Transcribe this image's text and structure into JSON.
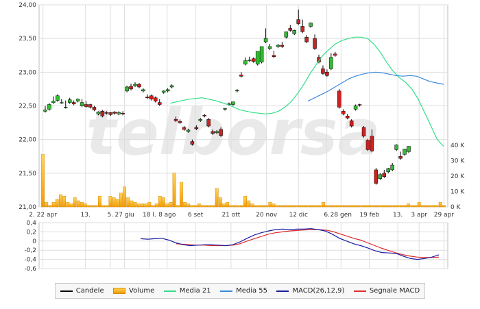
{
  "watermark": "telborsa",
  "chart_data": [
    {
      "type": "candlestick",
      "ylim": [
        21.0,
        24.0
      ],
      "y_ticks": [
        "24,00",
        "23,50",
        "23,00",
        "22,50",
        "22,00",
        "21,50",
        "21,00"
      ],
      "y_tick_values": [
        24.0,
        23.5,
        23.0,
        22.5,
        22.0,
        21.5,
        21.0
      ],
      "x_tick_labels": [
        "2. 22 apr",
        "13.",
        "5.",
        "27 giu",
        "18 l.",
        "8 ago",
        "6 set",
        "21 ott",
        "20 nov",
        "12 dic",
        "6.",
        "28 gen",
        "19 feb",
        "13.",
        "3 apr",
        "29 apr"
      ],
      "x_tick_index": [
        0,
        12,
        19,
        23,
        30,
        35,
        43,
        53,
        63,
        72,
        80,
        84,
        92,
        100,
        106,
        113
      ],
      "candles_ocl": [
        [
          22.42,
          22.5,
          22.44
        ],
        [
          22.45,
          22.54,
          22.52
        ],
        [
          22.55,
          22.64,
          22.57
        ],
        [
          22.58,
          22.67,
          22.65
        ],
        [
          22.55,
          22.6,
          22.55
        ],
        [
          22.48,
          22.58,
          22.48
        ],
        [
          22.55,
          22.62,
          22.59
        ],
        [
          22.55,
          22.58,
          22.53
        ],
        [
          22.57,
          22.61,
          22.6
        ],
        [
          22.5,
          22.6,
          22.55
        ],
        [
          22.52,
          22.57,
          22.49
        ],
        [
          22.52,
          22.53,
          22.48
        ],
        [
          22.48,
          22.5,
          22.44
        ],
        [
          22.38,
          22.42,
          22.41
        ],
        [
          22.42,
          22.44,
          22.35
        ],
        [
          22.4,
          22.42,
          22.39
        ],
        [
          22.4,
          22.41,
          22.37
        ],
        [
          22.41,
          22.42,
          22.39
        ],
        [
          22.38,
          22.42,
          22.4
        ],
        [
          22.39,
          22.42,
          22.38
        ],
        [
          22.72,
          22.8,
          22.78
        ],
        [
          22.79,
          22.83,
          22.75
        ],
        [
          22.8,
          22.85,
          22.82
        ],
        [
          22.82,
          22.84,
          22.78
        ],
        [
          22.72,
          22.76,
          22.74
        ],
        [
          22.63,
          22.67,
          22.62
        ],
        [
          22.65,
          22.67,
          22.6
        ],
        [
          22.62,
          22.64,
          22.57
        ],
        [
          22.55,
          22.6,
          22.52
        ],
        [
          22.7,
          22.73,
          22.72
        ],
        [
          22.72,
          22.76,
          22.74
        ],
        [
          22.78,
          22.82,
          22.8
        ],
        [
          22.3,
          22.34,
          22.28
        ],
        [
          22.27,
          22.3,
          22.25
        ],
        [
          22.18,
          22.2,
          22.15
        ],
        [
          22.12,
          22.16,
          22.14
        ],
        [
          21.97,
          22.0,
          21.93
        ],
        [
          22.18,
          22.21,
          22.16
        ],
        [
          22.28,
          22.32,
          22.3
        ],
        [
          22.36,
          22.38,
          22.35
        ],
        [
          22.3,
          22.32,
          22.2
        ],
        [
          22.12,
          22.15,
          22.09
        ],
        [
          22.1,
          22.14,
          22.12
        ],
        [
          22.15,
          22.18,
          22.06
        ],
        [
          22.45,
          22.47,
          22.46
        ],
        [
          22.52,
          22.55,
          22.53
        ],
        [
          22.52,
          22.55,
          22.56
        ],
        [
          22.72,
          22.75,
          22.73
        ],
        [
          22.96,
          23.0,
          22.94
        ],
        [
          23.12,
          23.22,
          23.17
        ],
        [
          23.17,
          23.23,
          23.18
        ],
        [
          23.2,
          23.22,
          23.16
        ],
        [
          23.12,
          23.3,
          23.31
        ],
        [
          23.15,
          23.35,
          23.38
        ],
        [
          23.45,
          23.65,
          23.5
        ],
        [
          23.35,
          23.42,
          23.38
        ],
        [
          23.25,
          23.32,
          23.23
        ],
        [
          23.38,
          23.42,
          23.4
        ],
        [
          23.4,
          23.45,
          23.38
        ],
        [
          23.52,
          23.6,
          23.6
        ],
        [
          23.65,
          23.7,
          23.62
        ],
        [
          23.57,
          23.63,
          23.62
        ],
        [
          23.78,
          23.93,
          23.72
        ],
        [
          23.68,
          23.78,
          23.6
        ],
        [
          23.52,
          23.55,
          23.45
        ],
        [
          23.68,
          23.74,
          23.73
        ],
        [
          23.5,
          23.56,
          23.35
        ],
        [
          23.22,
          23.26,
          23.15
        ],
        [
          23.05,
          23.1,
          22.98
        ],
        [
          23.0,
          23.04,
          22.95
        ],
        [
          23.05,
          23.28,
          23.22
        ],
        [
          23.27,
          23.3,
          23.25
        ],
        [
          22.72,
          22.75,
          22.48
        ],
        [
          22.42,
          22.45,
          22.38
        ],
        [
          22.35,
          22.38,
          22.32
        ],
        [
          22.28,
          22.3,
          22.2
        ],
        [
          22.45,
          22.52,
          22.5
        ],
        [
          22.52,
          22.53,
          22.51
        ],
        [
          22.18,
          22.2,
          22.05
        ],
        [
          21.99,
          22.01,
          21.85
        ],
        [
          22.05,
          22.15,
          21.83
        ],
        [
          21.55,
          21.58,
          21.35
        ],
        [
          21.42,
          21.5,
          21.48
        ],
        [
          21.5,
          21.55,
          21.45
        ],
        [
          21.52,
          21.58,
          21.57
        ],
        [
          21.55,
          21.65,
          21.62
        ],
        [
          21.85,
          21.93,
          21.92
        ],
        [
          21.75,
          21.82,
          21.72
        ],
        [
          21.78,
          21.85,
          21.86
        ],
        [
          21.82,
          21.9,
          21.9
        ]
      ],
      "ma21": [
        null,
        null,
        null,
        null,
        null,
        null,
        null,
        null,
        null,
        null,
        null,
        null,
        null,
        null,
        null,
        null,
        null,
        null,
        null,
        null,
        22.54,
        22.56,
        22.58,
        22.6,
        22.61,
        22.62,
        22.6,
        22.58,
        22.55,
        22.52,
        22.48,
        22.44,
        22.42,
        22.4,
        22.39,
        22.38,
        22.39,
        22.42,
        22.48,
        22.56,
        22.68,
        22.82,
        22.98,
        23.12,
        23.25,
        23.34,
        23.42,
        23.47,
        23.5,
        23.52,
        23.52,
        23.5,
        23.42,
        23.3,
        23.15,
        23.02,
        22.92,
        22.85,
        22.75,
        22.6,
        22.4,
        22.2,
        22.0,
        21.9
      ],
      "ma55": [
        null,
        null,
        null,
        null,
        null,
        null,
        null,
        null,
        null,
        null,
        null,
        null,
        null,
        null,
        null,
        null,
        null,
        null,
        null,
        null,
        null,
        null,
        null,
        null,
        null,
        null,
        null,
        null,
        null,
        null,
        null,
        null,
        null,
        null,
        null,
        null,
        null,
        null,
        null,
        22.57,
        22.62,
        22.67,
        22.72,
        22.78,
        22.84,
        22.9,
        22.94,
        22.97,
        22.99,
        23.0,
        22.99,
        22.97,
        22.95,
        22.94,
        22.95,
        22.94,
        22.9,
        22.86,
        22.84,
        22.82
      ],
      "volume_axis": {
        "ticks": [
          "40 K",
          "30 K",
          "20 K",
          "10 K",
          "0 K"
        ],
        "values": [
          40,
          30,
          20,
          10,
          0
        ],
        "unit": "K"
      },
      "volume_k": [
        34,
        3,
        1,
        3,
        5,
        8,
        7,
        3,
        2,
        6,
        4,
        3,
        2,
        1,
        1,
        1,
        7,
        1,
        1,
        7,
        6,
        5,
        9,
        13,
        6,
        4,
        3,
        2,
        2,
        2,
        3,
        1,
        2,
        7,
        6,
        2,
        3,
        22,
        1,
        16,
        3,
        2,
        1,
        1,
        2,
        1,
        1,
        1,
        1,
        12,
        6,
        2,
        3,
        1,
        1,
        1,
        1,
        7,
        4,
        2,
        1,
        1,
        1,
        1,
        3,
        2,
        1,
        1,
        1,
        1,
        1,
        1,
        1,
        1,
        1,
        1,
        1,
        1,
        1,
        3,
        1,
        1,
        1,
        1,
        1,
        1,
        1,
        1,
        1,
        1,
        1,
        1,
        1,
        1,
        1,
        1,
        1,
        1,
        1,
        1,
        1,
        1,
        1,
        2,
        1,
        1,
        3,
        1,
        1,
        1,
        1,
        1,
        3,
        1
      ]
    },
    {
      "type": "line",
      "ylim": [
        -0.6,
        0.4
      ],
      "y_ticks": [
        "0,4",
        "0,2",
        "0",
        "-0,2",
        "-0,4",
        "-0,6"
      ],
      "y_tick_values": [
        0.4,
        0.2,
        0.0,
        -0.2,
        -0.4,
        -0.6
      ],
      "macd": [
        0.05,
        0.04,
        0.05,
        0.06,
        0.02,
        -0.04,
        -0.08,
        -0.1,
        -0.09,
        -0.08,
        -0.08,
        -0.09,
        -0.1,
        -0.08,
        -0.02,
        0.06,
        0.13,
        0.18,
        0.22,
        0.25,
        0.26,
        0.25,
        0.26,
        0.26,
        0.27,
        0.25,
        0.22,
        0.15,
        0.06,
        0.0,
        -0.06,
        -0.1,
        -0.15,
        -0.21,
        -0.25,
        -0.26,
        -0.27,
        -0.33,
        -0.38,
        -0.4,
        -0.38,
        -0.35,
        -0.3
      ],
      "signal": [
        null,
        null,
        null,
        null,
        null,
        -0.06,
        -0.07,
        -0.08,
        -0.09,
        -0.09,
        -0.1,
        -0.1,
        -0.1,
        -0.09,
        -0.06,
        0.0,
        0.05,
        0.1,
        0.15,
        0.18,
        0.2,
        0.22,
        0.23,
        0.24,
        0.25,
        0.25,
        0.24,
        0.21,
        0.16,
        0.11,
        0.06,
        0.02,
        -0.04,
        -0.1,
        -0.16,
        -0.21,
        -0.26,
        -0.3,
        -0.33,
        -0.35,
        -0.36,
        -0.36,
        -0.35
      ]
    }
  ],
  "legend": [
    {
      "label": "Candele",
      "kind": "line",
      "color": "#000000"
    },
    {
      "label": "Volume",
      "kind": "volume",
      "color": "#f4a300"
    },
    {
      "label": "Media 21",
      "kind": "line",
      "color": "#33dd88"
    },
    {
      "label": "Media 55",
      "kind": "line",
      "color": "#3a88dd"
    },
    {
      "label": "MACD(26,12,9)",
      "kind": "line",
      "color": "#1a1aa0"
    },
    {
      "label": "Segnale MACD",
      "kind": "line",
      "color": "#dd2a2a"
    }
  ],
  "colors": {
    "up": "#33bb33",
    "down": "#cc2222",
    "grid": "#dddddd"
  }
}
